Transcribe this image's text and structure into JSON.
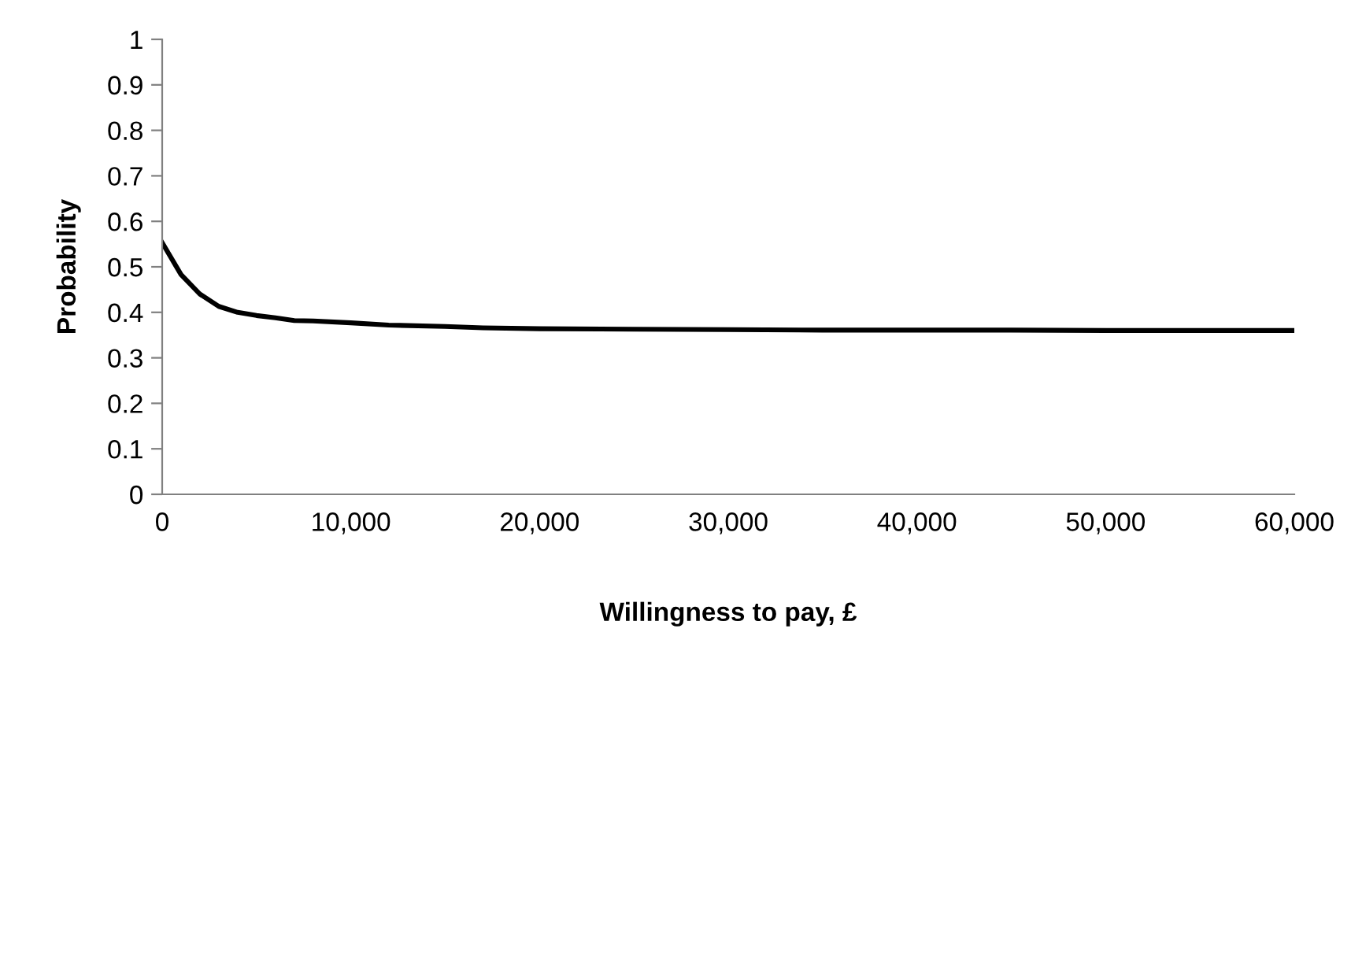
{
  "chart_data": {
    "type": "line",
    "xlabel": "Willingness to pay, £",
    "ylabel": "Probability",
    "x": [
      0,
      1000,
      2000,
      3000,
      4000,
      5000,
      6000,
      7000,
      8000,
      10000,
      12000,
      15000,
      17000,
      20000,
      25000,
      30000,
      35000,
      40000,
      45000,
      50000,
      55000,
      60000
    ],
    "series": [
      {
        "color": "#000000",
        "values": [
          0.553,
          0.483,
          0.44,
          0.413,
          0.4,
          0.393,
          0.388,
          0.382,
          0.381,
          0.377,
          0.372,
          0.369,
          0.366,
          0.364,
          0.363,
          0.362,
          0.361,
          0.361,
          0.361,
          0.36,
          0.36,
          0.36
        ]
      }
    ],
    "xlim": [
      0,
      60000
    ],
    "xticks": [
      {
        "value": 0,
        "label": "0"
      },
      {
        "value": 10000,
        "label": "10,000"
      },
      {
        "value": 20000,
        "label": "20,000"
      },
      {
        "value": 30000,
        "label": "30,000"
      },
      {
        "value": 40000,
        "label": "40,000"
      },
      {
        "value": 50000,
        "label": "50,000"
      },
      {
        "value": 60000,
        "label": "60,000"
      }
    ],
    "ylim": [
      0,
      1
    ],
    "yticks": [
      0,
      0.1,
      0.2,
      0.3,
      0.4,
      0.5,
      0.6,
      0.7,
      0.8,
      0.9,
      1
    ],
    "grid": false,
    "marker": "none",
    "line_style": "solid"
  }
}
